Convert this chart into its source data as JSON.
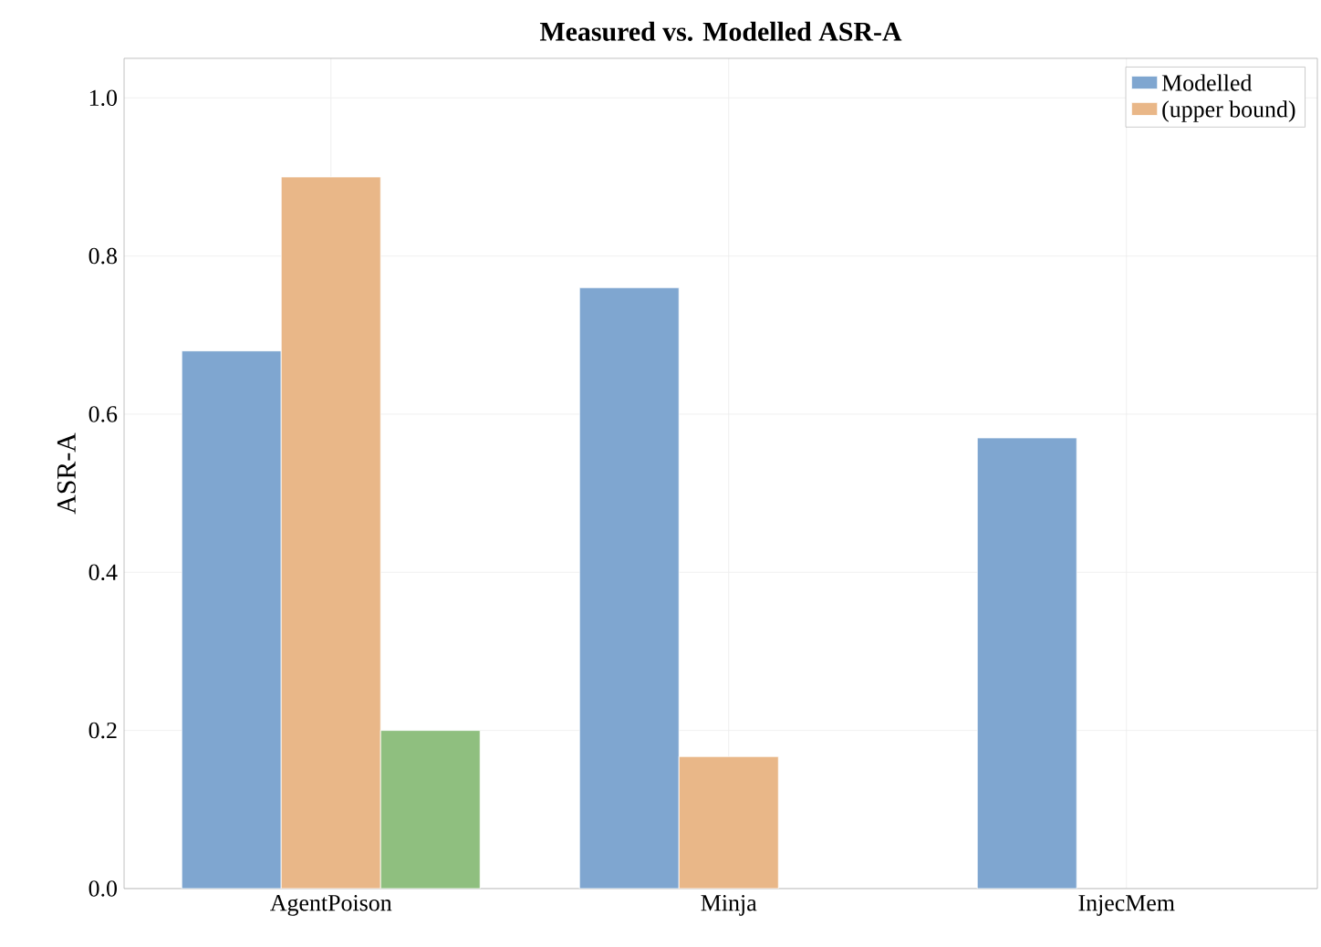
{
  "chart_data": {
    "type": "bar",
    "title": "Measured vs. Modelled ASR-A",
    "ylabel": "ASR-A",
    "categories": [
      "AgentPoison",
      "Minja",
      "InjecMem"
    ],
    "series": [
      {
        "name": "Modelled",
        "color": "#7fa6d0",
        "values": [
          0.68,
          0.76,
          0.57
        ]
      },
      {
        "name": "(upper bound)",
        "color": "#e9b788",
        "values": [
          0.9,
          0.167,
          null
        ]
      },
      {
        "color": "#8fbf7f",
        "values": [
          0.2,
          null,
          null
        ]
      }
    ],
    "ylim": [
      0,
      1.05
    ],
    "yticks": [
      {
        "value": 0,
        "label": "0.0"
      },
      {
        "value": 0.2,
        "label": "0.2"
      },
      {
        "value": 0.4,
        "label": "0.4"
      },
      {
        "value": 0.6,
        "label": "0.6"
      },
      {
        "value": 0.8,
        "label": "0.8"
      },
      {
        "value": 1.0,
        "label": "1.0"
      }
    ],
    "grid": true,
    "legend": "top right"
  }
}
